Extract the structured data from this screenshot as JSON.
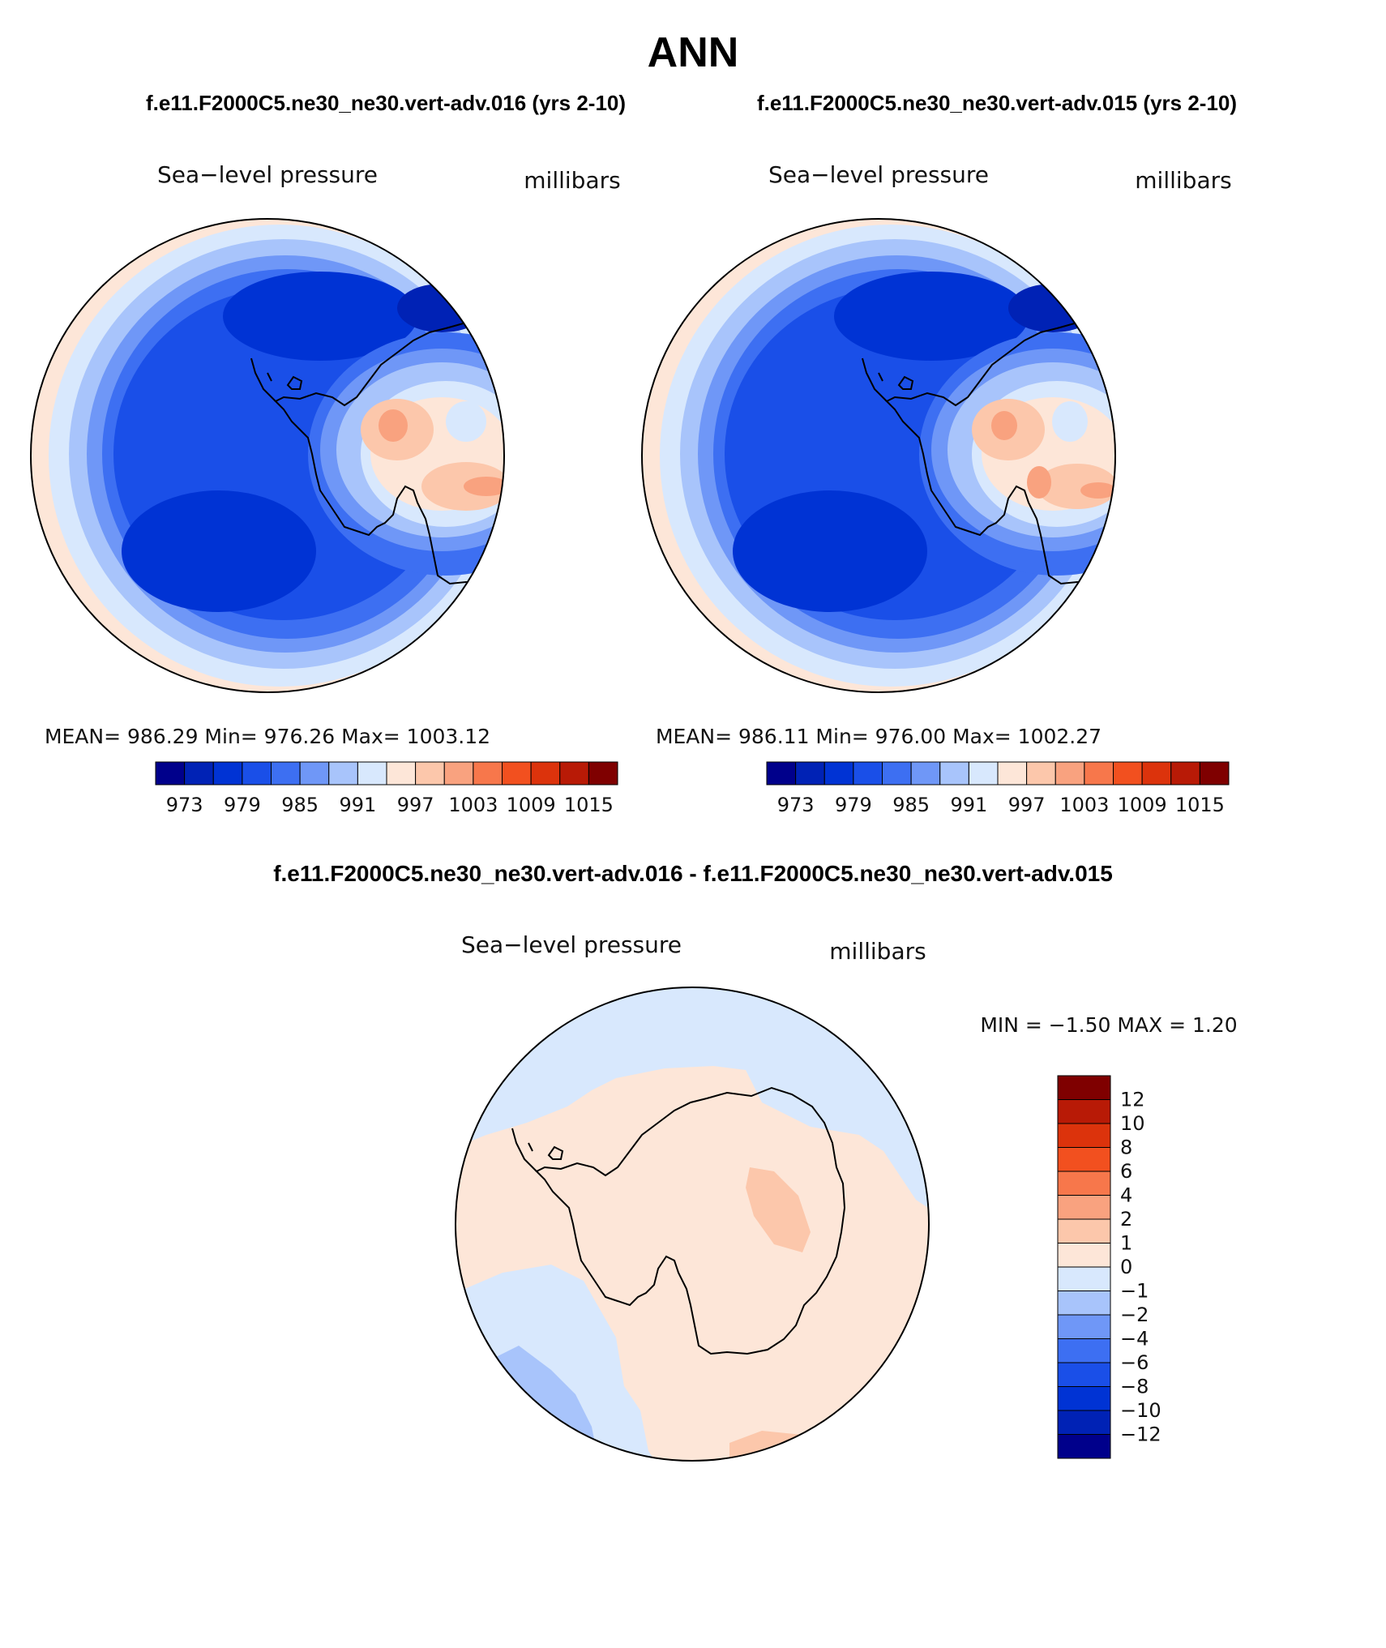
{
  "figure": {
    "title": "ANN",
    "case_left_label": "f.e11.F2000C5.ne30_ne30.vert-adv.016 (yrs 2-10)",
    "case_right_label": "f.e11.F2000C5.ne30_ne30.vert-adv.015 (yrs 2-10)",
    "diff_title": "f.e11.F2000C5.ne30_ne30.vert-adv.016 - f.e11.F2000C5.ne30_ne30.vert-adv.015"
  },
  "panels": [
    {
      "variable": "Sea−level pressure",
      "units": "millibars",
      "stats": "MEAN=  986.29    Min=  976.26    Max=  1003.12",
      "mean": 986.29,
      "min": 976.26,
      "max": 1003.12
    },
    {
      "variable": "Sea−level pressure",
      "units": "millibars",
      "stats": "MEAN=  986.11    Min=  976.00    Max=  1002.27",
      "mean": 986.11,
      "min": 976.0,
      "max": 1002.27
    }
  ],
  "diff_panel": {
    "variable": "Sea−level pressure",
    "units": "millibars",
    "minmax": "MIN =    −1.50  MAX =      1.20",
    "min": -1.5,
    "max": 1.2
  },
  "abs_colorbar": {
    "colors": [
      "#00008b",
      "#0022b5",
      "#0033d4",
      "#1a4fe8",
      "#3d6ff2",
      "#6f97f7",
      "#a8c4fb",
      "#d8e8fd",
      "#fde6d8",
      "#fcc7ab",
      "#f9a27f",
      "#f7774b",
      "#f2501f",
      "#dc330c",
      "#b81a06",
      "#7f0000"
    ],
    "tick_labels": [
      "973",
      "979",
      "985",
      "991",
      "997",
      "1003",
      "1009",
      "1015"
    ]
  },
  "diff_colorbar": {
    "colors": [
      "#00008b",
      "#0022b5",
      "#0033d4",
      "#1a4fe8",
      "#3d6ff2",
      "#6f97f7",
      "#a8c4fb",
      "#d8e8fd",
      "#fde6d8",
      "#fcc7ab",
      "#f9a27f",
      "#f7774b",
      "#f2501f",
      "#dc330c",
      "#b81a06",
      "#7f0000"
    ],
    "tick_labels": [
      "12",
      "10",
      "8",
      "6",
      "4",
      "2",
      "1",
      "0",
      "−1",
      "−2",
      "−4",
      "−6",
      "−8",
      "−10",
      "−12"
    ]
  }
}
